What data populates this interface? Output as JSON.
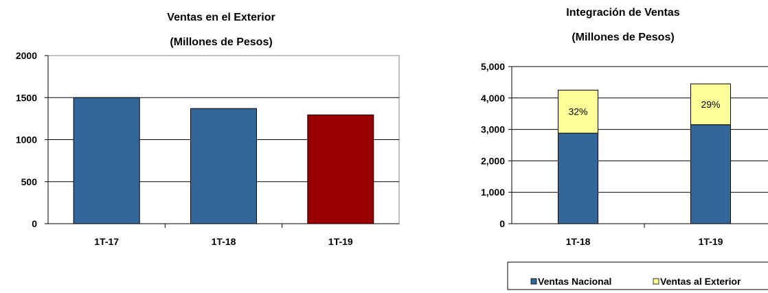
{
  "chart_data": [
    {
      "type": "bar",
      "title": "Ventas en el Exterior",
      "subtitle": "(Millones de Pesos)",
      "categories": [
        "1T-17",
        "1T-18",
        "1T-19"
      ],
      "values": [
        1500,
        1370,
        1295
      ],
      "bar_colors": [
        "#336699",
        "#336699",
        "#990000"
      ],
      "ylim": [
        0,
        2000
      ],
      "yticks": [
        "0",
        "500",
        "1000",
        "1500",
        "2000"
      ],
      "grid": true,
      "xlabel": "",
      "ylabel": ""
    },
    {
      "type": "bar",
      "stacked": true,
      "title": "Integración de Ventas",
      "subtitle": "(Millones de Pesos)",
      "categories": [
        "1T-18",
        "1T-19"
      ],
      "series": [
        {
          "name": "Ventas Nacional",
          "values": [
            2880,
            3150
          ],
          "color": "#336699"
        },
        {
          "name": "Ventas al Exterior",
          "values": [
            1370,
            1300
          ],
          "color": "#ffff99"
        }
      ],
      "data_labels": [
        "32%",
        "29%"
      ],
      "ylim": [
        0,
        5000
      ],
      "yticks": [
        "0",
        "1,000",
        "2,000",
        "3,000",
        "4,000",
        "5,000"
      ],
      "grid": true,
      "legend": "bottom",
      "xlabel": "",
      "ylabel": ""
    }
  ]
}
